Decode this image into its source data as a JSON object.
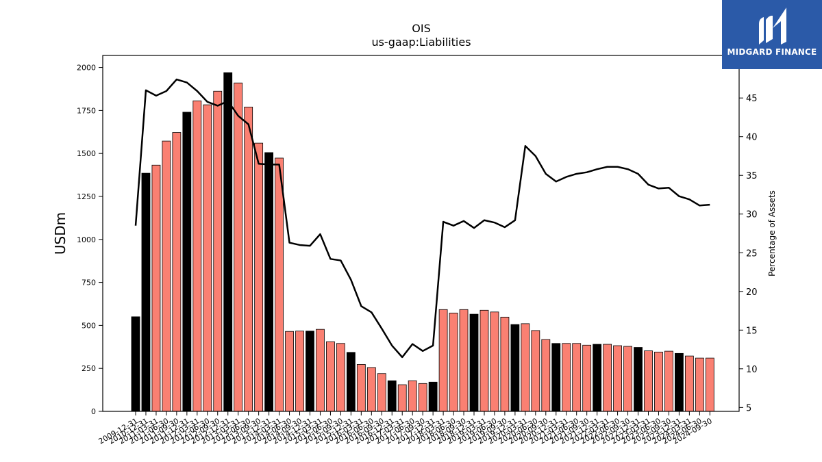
{
  "chart_data": {
    "type": "bar",
    "title": "OIS",
    "subtitle": "us-gaap:Liabilities",
    "ylabel": "USDm",
    "y2label": "Percentage of Assets",
    "ylim": [
      0,
      2070
    ],
    "y2lim": [
      4.5,
      50.5
    ],
    "yticks": [
      0,
      250,
      500,
      750,
      1000,
      1250,
      1500,
      1750,
      2000
    ],
    "y2ticks": [
      5,
      10,
      15,
      20,
      25,
      30,
      35,
      40,
      45
    ],
    "categories": [
      "2009-12-31",
      "2010-12-31",
      "2011-03-31",
      "2011-06-30",
      "2011-09-30",
      "2011-12-31",
      "2012-03-31",
      "2012-06-30",
      "2012-09-30",
      "2012-12-31",
      "2013-03-31",
      "2013-06-30",
      "2013-09-30",
      "2013-12-31",
      "2014-03-31",
      "2014-06-30",
      "2014-09-30",
      "2014-12-31",
      "2015-03-31",
      "2015-06-30",
      "2015-09-30",
      "2015-12-31",
      "2016-03-31",
      "2016-06-30",
      "2016-09-30",
      "2016-12-31",
      "2017-03-31",
      "2017-06-30",
      "2017-09-30",
      "2017-12-31",
      "2018-03-31",
      "2018-06-30",
      "2018-09-30",
      "2018-12-31",
      "2019-03-31",
      "2019-06-30",
      "2019-09-30",
      "2019-12-31",
      "2020-03-31",
      "2020-06-30",
      "2020-09-30",
      "2020-12-31",
      "2021-03-31",
      "2021-06-30",
      "2021-09-30",
      "2021-12-31",
      "2022-03-31",
      "2022-06-30",
      "2022-09-30",
      "2022-12-31",
      "2023-03-31",
      "2023-06-30",
      "2023-09-30",
      "2023-12-31",
      "2024-03-31",
      "2024-06-30",
      "2024-09-30"
    ],
    "series": [
      {
        "values": [
          550,
          1385,
          1432,
          1572,
          1622,
          1740,
          1806,
          1783,
          1862,
          1970,
          1910,
          1770,
          1560,
          1505,
          1473,
          465,
          467,
          467,
          477,
          405,
          395,
          343,
          273,
          255,
          220,
          178,
          155,
          178,
          162,
          170,
          592,
          572,
          592,
          565,
          588,
          578,
          548,
          505,
          510,
          470,
          418,
          395,
          395,
          395,
          385,
          390,
          390,
          382,
          378,
          372,
          352,
          345,
          350,
          337,
          322,
          310,
          310
        ],
        "highlight": [
          true,
          true,
          false,
          false,
          false,
          true,
          false,
          false,
          false,
          true,
          false,
          false,
          false,
          true,
          false,
          false,
          false,
          true,
          false,
          false,
          false,
          true,
          false,
          false,
          false,
          true,
          false,
          false,
          false,
          true,
          false,
          false,
          false,
          true,
          false,
          false,
          false,
          true,
          false,
          false,
          false,
          true,
          false,
          false,
          false,
          true,
          false,
          false,
          false,
          true,
          false,
          false,
          false,
          true,
          false,
          false,
          false
        ],
        "color": "#fa8072",
        "highlight_color": "#000000"
      },
      {
        "axis": "right",
        "type": "line",
        "color": "#000000",
        "values": [
          28.5,
          46.0,
          45.3,
          45.9,
          47.4,
          47.0,
          45.9,
          44.5,
          44.0,
          44.6,
          42.7,
          41.6,
          36.5,
          36.4,
          36.4,
          26.3,
          26.0,
          25.9,
          27.4,
          24.2,
          24.0,
          21.5,
          18.1,
          17.3,
          15.2,
          13.0,
          11.5,
          13.2,
          12.3,
          13.0,
          29.0,
          28.5,
          29.1,
          28.2,
          29.2,
          28.9,
          28.3,
          29.2,
          38.8,
          37.5,
          35.2,
          34.2,
          34.8,
          35.2,
          35.4,
          35.8,
          36.1,
          36.1,
          35.8,
          35.2,
          33.8,
          33.3,
          33.4,
          32.3,
          31.9,
          31.1,
          31.2
        ]
      }
    ],
    "grid": false,
    "legend": "none"
  },
  "logo": {
    "text": "MIDGARD FINANCE",
    "bg_color": "#2b5aa8"
  }
}
